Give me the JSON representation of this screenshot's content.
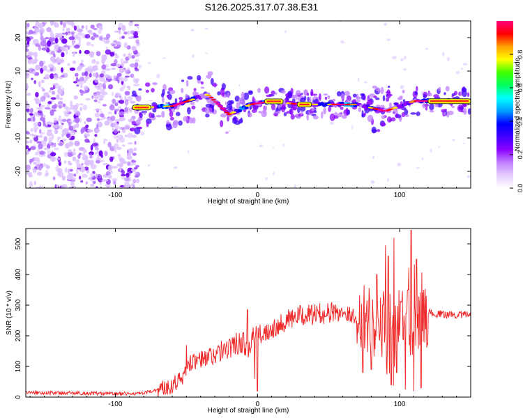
{
  "title": "S126.2025.317.07.38.E31",
  "colors": {
    "snr_line": "#ee2b2b",
    "axis": "#000000",
    "background": "#ffffff"
  },
  "chart_data": [
    {
      "type": "heatmap",
      "name": "spectrogram",
      "xlabel": "Height of straight line (km)",
      "ylabel": "Frequency (Hz)",
      "xlim": [
        -163,
        150
      ],
      "ylim": [
        -25,
        25
      ],
      "xticks": [
        -100,
        0,
        100
      ],
      "xtick_labels": [
        "-100",
        "0",
        "100"
      ],
      "yticks": [
        -20,
        -10,
        0,
        10,
        20
      ],
      "ytick_labels": [
        "-20",
        "-10",
        "0",
        "10",
        "20"
      ],
      "signal_band": {
        "x_start": -88,
        "x_end": 150,
        "center_hz": [
          [
            -88,
            -1
          ],
          [
            -60,
            -0.5
          ],
          [
            -35,
            3
          ],
          [
            -20,
            -3
          ],
          [
            -5,
            0
          ],
          [
            10,
            1
          ],
          [
            30,
            0
          ],
          [
            50,
            0
          ],
          [
            70,
            0
          ],
          [
            90,
            -2
          ],
          [
            110,
            1
          ],
          [
            150,
            1
          ]
        ]
      },
      "noise_region": {
        "x_start": -163,
        "x_end": -90
      },
      "colorbar": {
        "label": "Normalized spectral amplitude",
        "ticks": [
          0.0,
          0.2,
          0.4,
          0.6,
          0.8
        ],
        "tick_labels": [
          "0.0",
          "0.2",
          "0.4",
          "0.6",
          "0.8"
        ],
        "range": [
          0,
          1
        ],
        "colormap": [
          "#ffffff",
          "#e6ccff",
          "#c080ff",
          "#8b00ff",
          "#4000ff",
          "#0000ff",
          "#00a0ff",
          "#00ffff",
          "#00ff60",
          "#40ff00",
          "#ffff00",
          "#ffa000",
          "#ff0000",
          "#ff0080"
        ]
      }
    },
    {
      "type": "line",
      "name": "snr",
      "xlabel": "Height of straight line (km)",
      "ylabel": "SNR (10 * v/v)",
      "xlim": [
        -163,
        150
      ],
      "ylim": [
        0,
        550
      ],
      "xticks": [
        -100,
        0,
        100
      ],
      "xtick_labels": [
        "-100",
        "0",
        "100"
      ],
      "yticks": [
        0,
        100,
        200,
        300,
        400,
        500
      ],
      "ytick_labels": [
        "0",
        "100",
        "200",
        "300",
        "400",
        "500"
      ],
      "series": [
        {
          "name": "SNR",
          "x": [
            -163,
            -150,
            -130,
            -110,
            -95,
            -80,
            -70,
            -62,
            -56,
            -52,
            -50,
            -48,
            -45,
            -40,
            -35,
            -30,
            -25,
            -20,
            -15,
            -10,
            -7,
            -5,
            -3,
            0,
            5,
            10,
            20,
            30,
            40,
            50,
            60,
            65,
            70,
            72,
            75,
            80,
            85,
            88,
            90,
            92,
            94,
            96,
            98,
            100,
            102,
            104,
            106,
            108,
            110,
            112,
            114,
            116,
            120,
            130,
            140,
            150
          ],
          "values": [
            15,
            14,
            13,
            12,
            11,
            12,
            25,
            35,
            55,
            60,
            100,
            110,
            115,
            120,
            130,
            140,
            150,
            160,
            170,
            180,
            150,
            180,
            200,
            195,
            215,
            225,
            250,
            265,
            270,
            275,
            278,
            270,
            260,
            240,
            270,
            250,
            230,
            200,
            300,
            100,
            320,
            80,
            350,
            200,
            310,
            150,
            380,
            100,
            350,
            150,
            260,
            300,
            275,
            270,
            268,
            270
          ],
          "spikes": [
            [
              -50,
              170
            ],
            [
              -42,
              130
            ],
            [
              -15,
              210
            ],
            [
              -10,
              210
            ],
            [
              -7,
              285
            ],
            [
              -2,
              60
            ],
            [
              0,
              20
            ],
            [
              74,
              80
            ],
            [
              75,
              365
            ],
            [
              80,
              90
            ],
            [
              84,
              400
            ],
            [
              88,
              300
            ],
            [
              90,
              495
            ],
            [
              92,
              460
            ],
            [
              94,
              40
            ],
            [
              96,
              520
            ],
            [
              98,
              80
            ],
            [
              101,
              310
            ],
            [
              104,
              25
            ],
            [
              106,
              350
            ],
            [
              108,
              545
            ],
            [
              110,
              20
            ],
            [
              112,
              450
            ],
            [
              115,
              30
            ],
            [
              117,
              350
            ]
          ],
          "color": "#ee2b2b"
        }
      ]
    }
  ]
}
